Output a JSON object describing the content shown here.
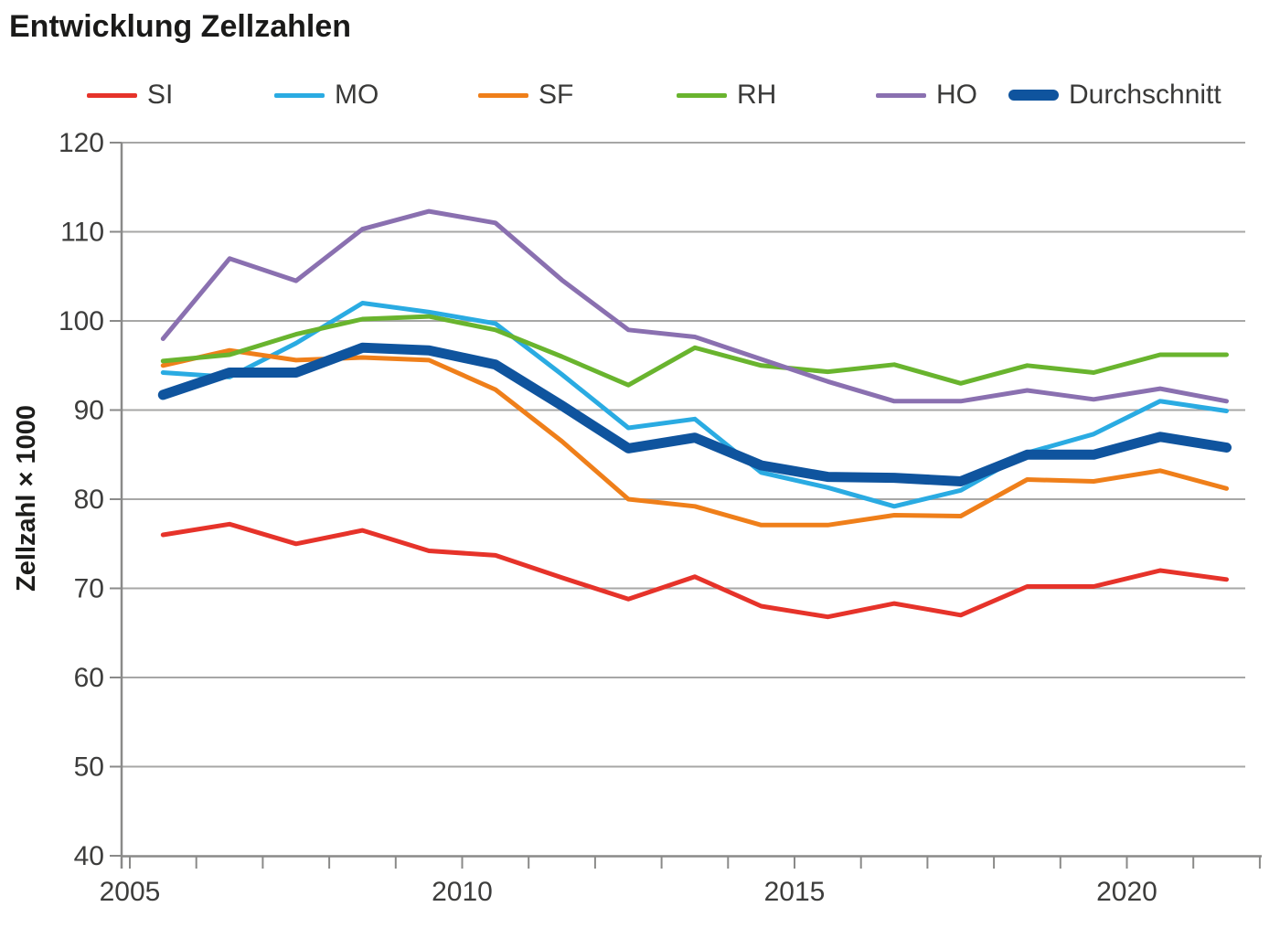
{
  "title": "Entwicklung Zellzahlen",
  "chart_data": {
    "type": "line",
    "title": "Entwicklung Zellzahlen",
    "xlabel": "",
    "ylabel": "Zellzahl × 1000",
    "ylim": [
      40,
      120
    ],
    "y_ticks": [
      40,
      50,
      60,
      70,
      80,
      90,
      100,
      110,
      120
    ],
    "x_labeled_ticks": [
      2005,
      2010,
      2015,
      2020
    ],
    "x_minor_tick_years": [
      2005,
      2006,
      2007,
      2008,
      2009,
      2010,
      2011,
      2012,
      2013,
      2014,
      2015,
      2016,
      2017,
      2018,
      2019,
      2020,
      2021,
      2022
    ],
    "grid": "horizontal",
    "legend_position": "top",
    "x": [
      2005.5,
      2006.5,
      2007.5,
      2008.5,
      2009.5,
      2010.5,
      2011.5,
      2012.5,
      2013.5,
      2014.5,
      2015.5,
      2016.5,
      2017.5,
      2018.5,
      2019.5,
      2020.5,
      2021.5
    ],
    "series": [
      {
        "name": "SI",
        "color": "#e6332a",
        "width": 5,
        "values": [
          76,
          77.2,
          75,
          76.5,
          74.2,
          73.7,
          71.2,
          68.8,
          71.3,
          68,
          66.8,
          68.3,
          67,
          70.2,
          70.2,
          72,
          71
        ]
      },
      {
        "name": "MO",
        "color": "#2aabe2",
        "width": 5,
        "values": [
          94.2,
          93.7,
          97.5,
          102,
          101,
          99.7,
          94,
          88,
          89,
          83,
          81.3,
          79.2,
          81,
          85.2,
          87.3,
          91,
          89.9
        ]
      },
      {
        "name": "SF",
        "color": "#ef7f1a",
        "width": 5,
        "values": [
          95,
          96.7,
          95.6,
          95.9,
          95.6,
          92.3,
          86.5,
          80,
          79.2,
          77.1,
          77.1,
          78.2,
          78.1,
          82.2,
          82,
          83.2,
          81.2
        ]
      },
      {
        "name": "RH",
        "color": "#69b42e",
        "width": 5,
        "values": [
          95.5,
          96.2,
          98.5,
          100.2,
          100.5,
          99,
          96,
          92.8,
          97,
          95,
          94.3,
          95.1,
          93,
          95,
          94.2,
          96.2,
          96.2
        ]
      },
      {
        "name": "HO",
        "color": "#8a70b0",
        "width": 5,
        "values": [
          98,
          107,
          104.5,
          110.3,
          112.3,
          111,
          104.6,
          99,
          98.2,
          95.7,
          93.2,
          91,
          91,
          92.2,
          91.2,
          92.4,
          91
        ]
      },
      {
        "name": "Durchschnitt",
        "color": "#0f549e",
        "width": 11,
        "values": [
          91.7,
          94.2,
          94.2,
          97,
          96.7,
          95.1,
          90.5,
          85.7,
          86.9,
          83.8,
          82.5,
          82.4,
          82,
          85,
          85,
          87,
          85.8
        ]
      }
    ],
    "colors": {
      "gridline": "#a7a7a6",
      "axis": "#8a8a89",
      "tick_label": "#3d3d3c",
      "axis_title": "#1d1d1b"
    }
  }
}
